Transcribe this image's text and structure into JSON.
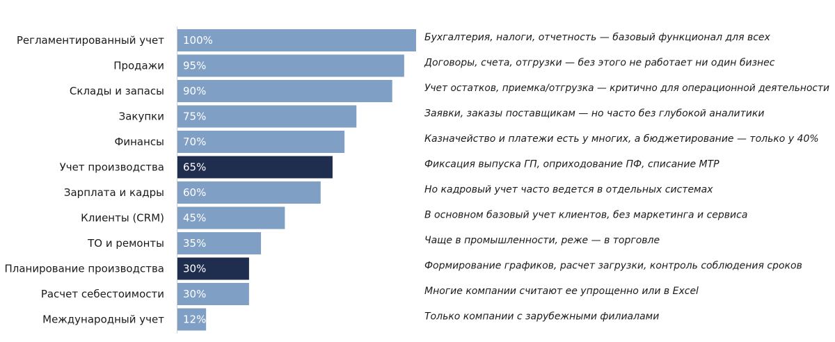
{
  "chart_data": {
    "type": "bar",
    "orientation": "horizontal",
    "title": "",
    "xlabel": "",
    "ylabel": "",
    "xlim": [
      0,
      100
    ],
    "grid": false,
    "legend": "none",
    "categories": [
      "Регламентированный учет",
      "Продажи",
      "Склады и запасы",
      "Закупки",
      "Финансы",
      "Учет производства",
      "Зарплата и кадры",
      "Клиенты (CRM)",
      "ТО и ремонты",
      "Планирование производства",
      "Расчет себестоимости",
      "Международный учет"
    ],
    "values": [
      100,
      95,
      90,
      75,
      70,
      65,
      60,
      45,
      35,
      30,
      30,
      12
    ],
    "value_labels": [
      "100%",
      "95%",
      "90%",
      "75%",
      "70%",
      "65%",
      "60%",
      "45%",
      "35%",
      "30%",
      "30%",
      "12%"
    ],
    "highlighted": [
      false,
      false,
      false,
      false,
      false,
      true,
      false,
      false,
      false,
      true,
      false,
      false
    ],
    "annotations": [
      "Бухгалтерия, налоги, отчетность — базовый функционал для всех",
      "Договоры, счета, отгрузки — без этого не работает ни один бизнес",
      "Учет остатков, приемка/отгрузка — критично для операционной деятельности",
      "Заявки, заказы поставщикам — но часто без глубокой аналитики",
      "Казначейство и платежи есть у многих, а бюджетирование — только у 40%",
      "Фиксация выпуска ГП, оприходование ПФ, списание МТР",
      "Но кадровый учет часто ведется в отдельных системах",
      "В основном базовый учет клиентов, без маркетинга и сервиса",
      "Чаще в промышленности, реже — в торговле",
      "Формирование графиков, расчет загрузки, контроль соблюдения сроков",
      "Многие компании считают ее упрощенно или в Excel",
      "Только компании с зарубежными филиалами"
    ],
    "colors": {
      "bar": "#7f9fc4",
      "highlight": "#1f2d4e",
      "axis": "#cfcfcf"
    }
  }
}
